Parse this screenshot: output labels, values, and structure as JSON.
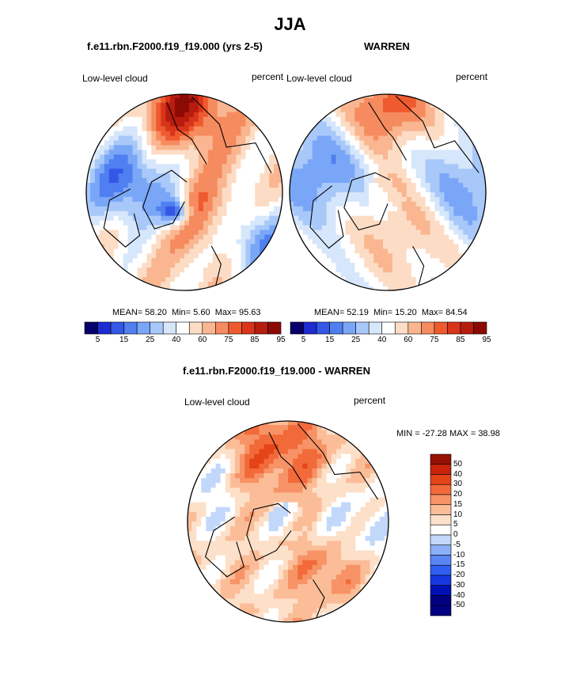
{
  "page": {
    "season_title": "JJA"
  },
  "colors": {
    "seq_palette": [
      "#08006a",
      "#1d2bd1",
      "#3457e6",
      "#4f7ff0",
      "#7aa6f7",
      "#a8c8fa",
      "#d6e6fb",
      "#ffffff",
      "#fcdcc5",
      "#f9b690",
      "#f58b5f",
      "#ef5a2e",
      "#d8351b",
      "#b71d0e",
      "#8c0a04"
    ],
    "diff_palette": [
      "#000080",
      "#0010b5",
      "#1737e0",
      "#2f5ef0",
      "#5a86f5",
      "#8bb0f9",
      "#c2d8fb",
      "#ffffff",
      "#fde0c9",
      "#fbbd98",
      "#f79366",
      "#f26a3a",
      "#e44416",
      "#c9230a",
      "#961004"
    ]
  },
  "chart_data": [
    {
      "type": "heatmap",
      "projection": "polar-stereographic-north",
      "title": "f.e11.rbn.F2000.f19_f19.000 (yrs 2-5)",
      "left_label": "Low-level cloud",
      "right_label": "percent",
      "stats": {
        "mean_label": "MEAN=",
        "mean": "58.20",
        "min_label": "Min=",
        "min": "5.60",
        "max_label": "Max=",
        "max": "95.63"
      },
      "colorbar": {
        "ticks": [
          "5",
          "15",
          "25",
          "40",
          "60",
          "75",
          "85",
          "95"
        ],
        "range": [
          0,
          100
        ],
        "units": "percent"
      }
    },
    {
      "type": "heatmap",
      "projection": "polar-stereographic-north",
      "title": "WARREN",
      "left_label": "Low-level cloud",
      "right_label": "percent",
      "stats": {
        "mean_label": "MEAN=",
        "mean": "52.19",
        "min_label": "Min=",
        "min": "15.20",
        "max_label": "Max=",
        "max": "84.54"
      },
      "colorbar": {
        "ticks": [
          "5",
          "15",
          "25",
          "40",
          "60",
          "75",
          "85",
          "95"
        ],
        "range": [
          0,
          100
        ],
        "units": "percent"
      }
    },
    {
      "type": "heatmap",
      "projection": "polar-stereographic-north",
      "title": "f.e11.rbn.F2000.f19_f19.000 - WARREN",
      "left_label": "Low-level cloud",
      "right_label": "percent",
      "minmax_text": "MIN = -27.28 MAX =  38.98",
      "colorbar": {
        "ticks": [
          "50",
          "40",
          "30",
          "20",
          "15",
          "10",
          "5",
          "0",
          "-5",
          "-10",
          "-15",
          "-20",
          "-30",
          "-40",
          "-50"
        ],
        "range": [
          -50,
          50
        ],
        "units": "percent"
      }
    }
  ]
}
